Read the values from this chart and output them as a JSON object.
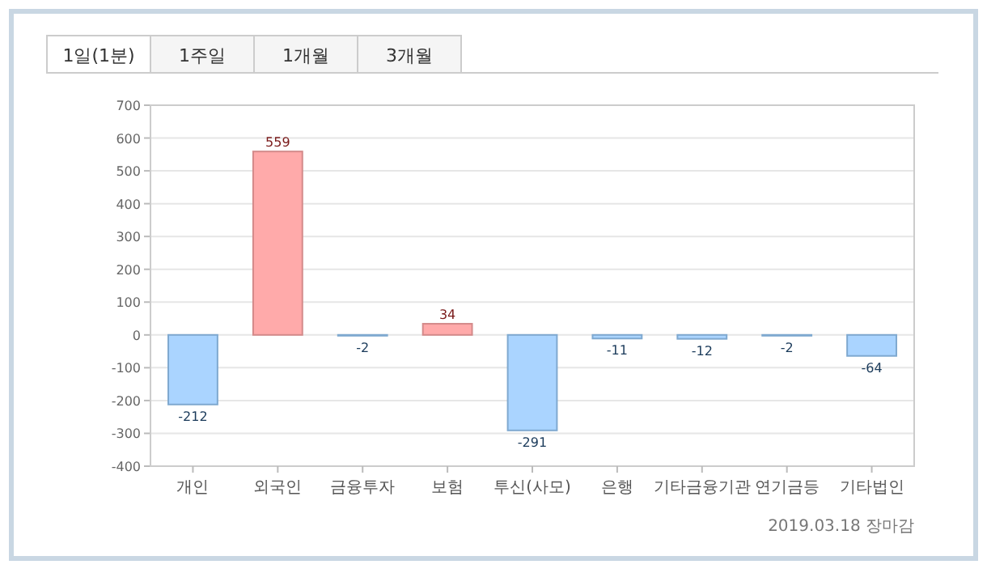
{
  "chart_data": {
    "type": "bar",
    "categories": [
      "개인",
      "외국인",
      "금융투자",
      "보험",
      "투신(사모)",
      "은행",
      "기타금융기관",
      "연기금등",
      "기타법인"
    ],
    "values": [
      -212,
      559,
      -2,
      34,
      -291,
      -11,
      -12,
      -2,
      -64
    ],
    "colors": [
      "#aad4ff",
      "#ffaaaa",
      "#aad4ff",
      "#ffaaaa",
      "#aad4ff",
      "#aad4ff",
      "#aad4ff",
      "#aad4ff",
      "#aad4ff"
    ],
    "data_labels": true,
    "ylim": [
      -400,
      700
    ],
    "yticks": [
      -400,
      -300,
      -200,
      -100,
      0,
      100,
      200,
      300,
      400,
      500,
      600,
      700
    ],
    "grid": "y",
    "annotations": [
      "1일(1분)",
      "1주일",
      "1개월",
      "3개월",
      "2019.03.18 장마감"
    ]
  }
}
